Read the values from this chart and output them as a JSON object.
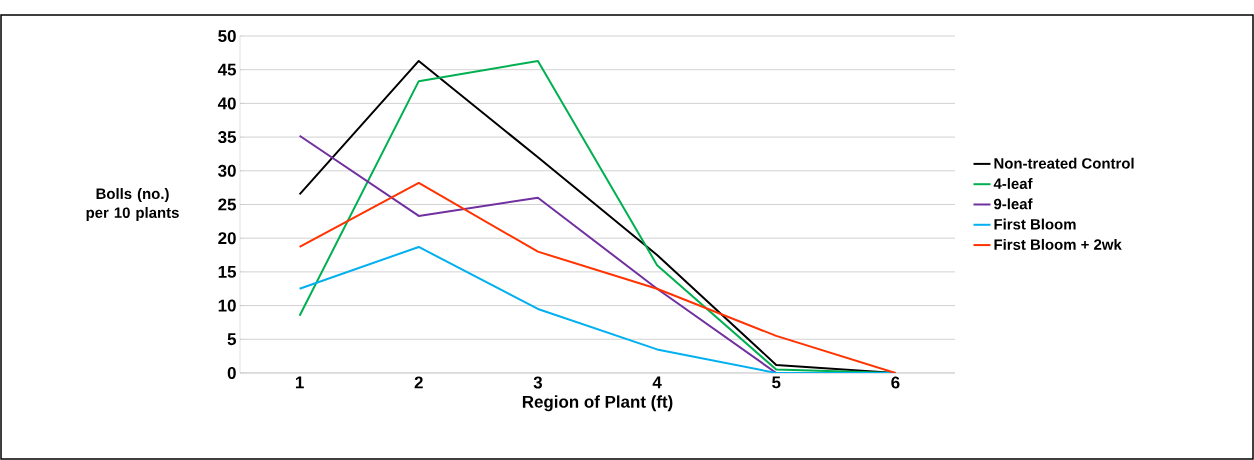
{
  "chart_data": {
    "type": "line",
    "xlabel": "Region of Plant (ft)",
    "ylabel": "Bolls (no.) per 10 plants",
    "categories": [
      "1",
      "2",
      "3",
      "4",
      "5",
      "6"
    ],
    "ylim": [
      0,
      50
    ],
    "yticks": [
      0,
      5,
      10,
      15,
      20,
      25,
      30,
      35,
      40,
      45,
      50
    ],
    "grid": "y",
    "legend": "right",
    "marker": "none",
    "line_style": "solid",
    "series": [
      {
        "name": "Non-treated Control",
        "color": "#000000",
        "values": [
          26.5,
          46.3,
          32,
          17.5,
          1.2,
          0
        ]
      },
      {
        "name": "4-leaf",
        "color": "#00b050",
        "values": [
          8.5,
          43.3,
          46.3,
          16,
          0.5,
          0
        ]
      },
      {
        "name": "9-leaf",
        "color": "#7030a0",
        "values": [
          35.2,
          23.3,
          26,
          12.5,
          0,
          0
        ]
      },
      {
        "name": "First Bloom",
        "color": "#00b0f0",
        "values": [
          12.5,
          18.7,
          9.5,
          3.5,
          0,
          0
        ]
      },
      {
        "name": "First Bloom + 2wk",
        "color": "#ff3300",
        "values": [
          18.7,
          28.2,
          18,
          12.5,
          5.5,
          0
        ]
      }
    ]
  }
}
